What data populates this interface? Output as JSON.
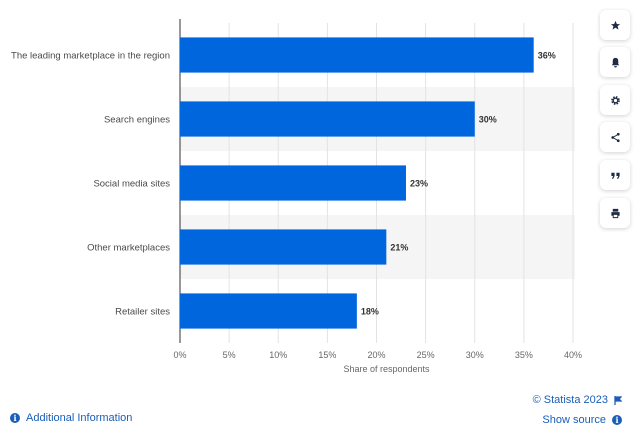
{
  "chart_data": {
    "type": "bar",
    "orientation": "horizontal",
    "categories": [
      "The leading marketplace in the region",
      "Search engines",
      "Social media sites",
      "Other marketplaces",
      "Retailer sites"
    ],
    "values": [
      36,
      30,
      23,
      21,
      18
    ],
    "value_labels": [
      "36%",
      "30%",
      "23%",
      "21%",
      "18%"
    ],
    "xlabel": "Share of respondents",
    "ylabel": "",
    "xlim": [
      0,
      40
    ],
    "xticks": [
      "0%",
      "5%",
      "10%",
      "15%",
      "20%",
      "25%",
      "30%",
      "35%",
      "40%"
    ],
    "bar_color": "#0066dd",
    "grid": true
  },
  "sidebar": {
    "buttons": [
      {
        "name": "star-icon"
      },
      {
        "name": "bell-icon"
      },
      {
        "name": "gear-icon"
      },
      {
        "name": "share-icon"
      },
      {
        "name": "quote-icon"
      },
      {
        "name": "print-icon"
      }
    ]
  },
  "footer": {
    "additional_info": "Additional Information",
    "copyright": "© Statista 2023",
    "show_source": "Show source"
  }
}
